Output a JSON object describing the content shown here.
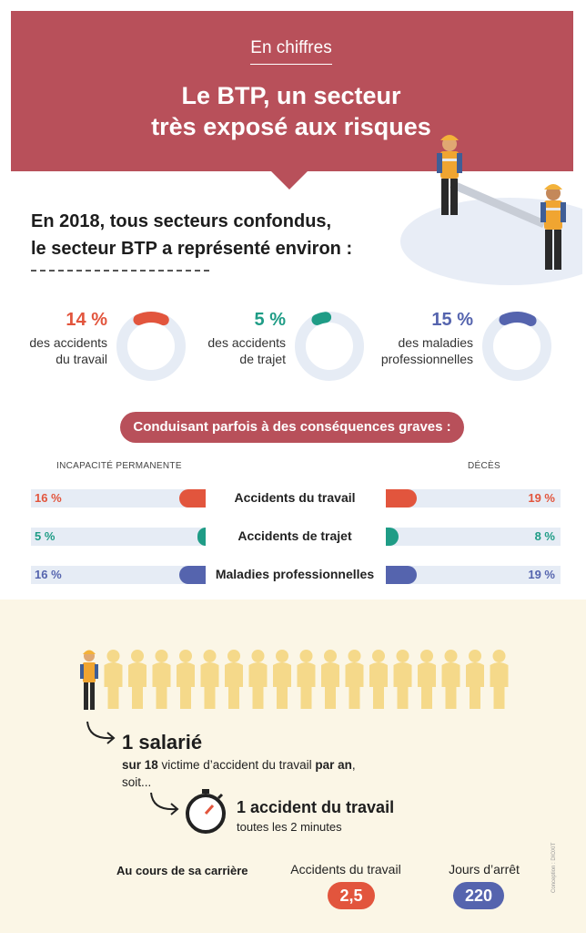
{
  "header": {
    "kicker": "En chiffres",
    "title_line1": "Le BTP, un secteur",
    "title_line2": "très exposé aux risques"
  },
  "intro": {
    "line1": "En 2018, tous secteurs confondus,",
    "line2": "le secteur BTP a représenté environ :"
  },
  "stats": [
    {
      "pct": "14 %",
      "line1": "des accidents",
      "line2": "du travail",
      "value": 14,
      "color": "#e2553d"
    },
    {
      "pct": "5 %",
      "line1": "des accidents",
      "line2": "de trajet",
      "value": 5,
      "color": "#1f9c86"
    },
    {
      "pct": "15 %",
      "line1": "des maladies",
      "line2": "professionnelles",
      "value": 15,
      "color": "#5564ae"
    }
  ],
  "consequences": {
    "heading": "Conduisant parfois à des conséquences graves :",
    "left_header": "INCAPACITÉ PERMANENTE",
    "right_header": "DÉCÈS",
    "rows": [
      {
        "label": "Accidents du travail",
        "left": "16 %",
        "right": "19 %",
        "left_value": 16,
        "right_value": 19,
        "color": "#e2553d"
      },
      {
        "label": "Accidents de trajet",
        "left": "5 %",
        "right": "8 %",
        "left_value": 5,
        "right_value": 8,
        "color": "#1f9c86"
      },
      {
        "label": "Maladies professionnelles",
        "left": "16 %",
        "right": "19 %",
        "left_value": 16,
        "right_value": 19,
        "color": "#5564ae"
      }
    ]
  },
  "employee": {
    "headline": "1 salarié",
    "sub_bold1": "sur 18",
    "sub_text1": " victime d’accident du travail ",
    "sub_bold2": "par an",
    "sub_text2": ",",
    "sub_line2": "soit..."
  },
  "accident": {
    "headline": "1 accident du travail",
    "sub": "toutes les 2 minutes"
  },
  "career": {
    "label": "Au cours de sa carrière",
    "col1_label": "Accidents du travail",
    "col1_value": "2,5",
    "col2_label": "Jours d’arrêt",
    "col2_value": "220"
  },
  "credit": "Conception : DIOXIT",
  "colors": {
    "brand": "#b8505a",
    "work": "#e2553d",
    "commute": "#1f9c86",
    "disease": "#5564ae",
    "figure": "#f5d98a"
  }
}
